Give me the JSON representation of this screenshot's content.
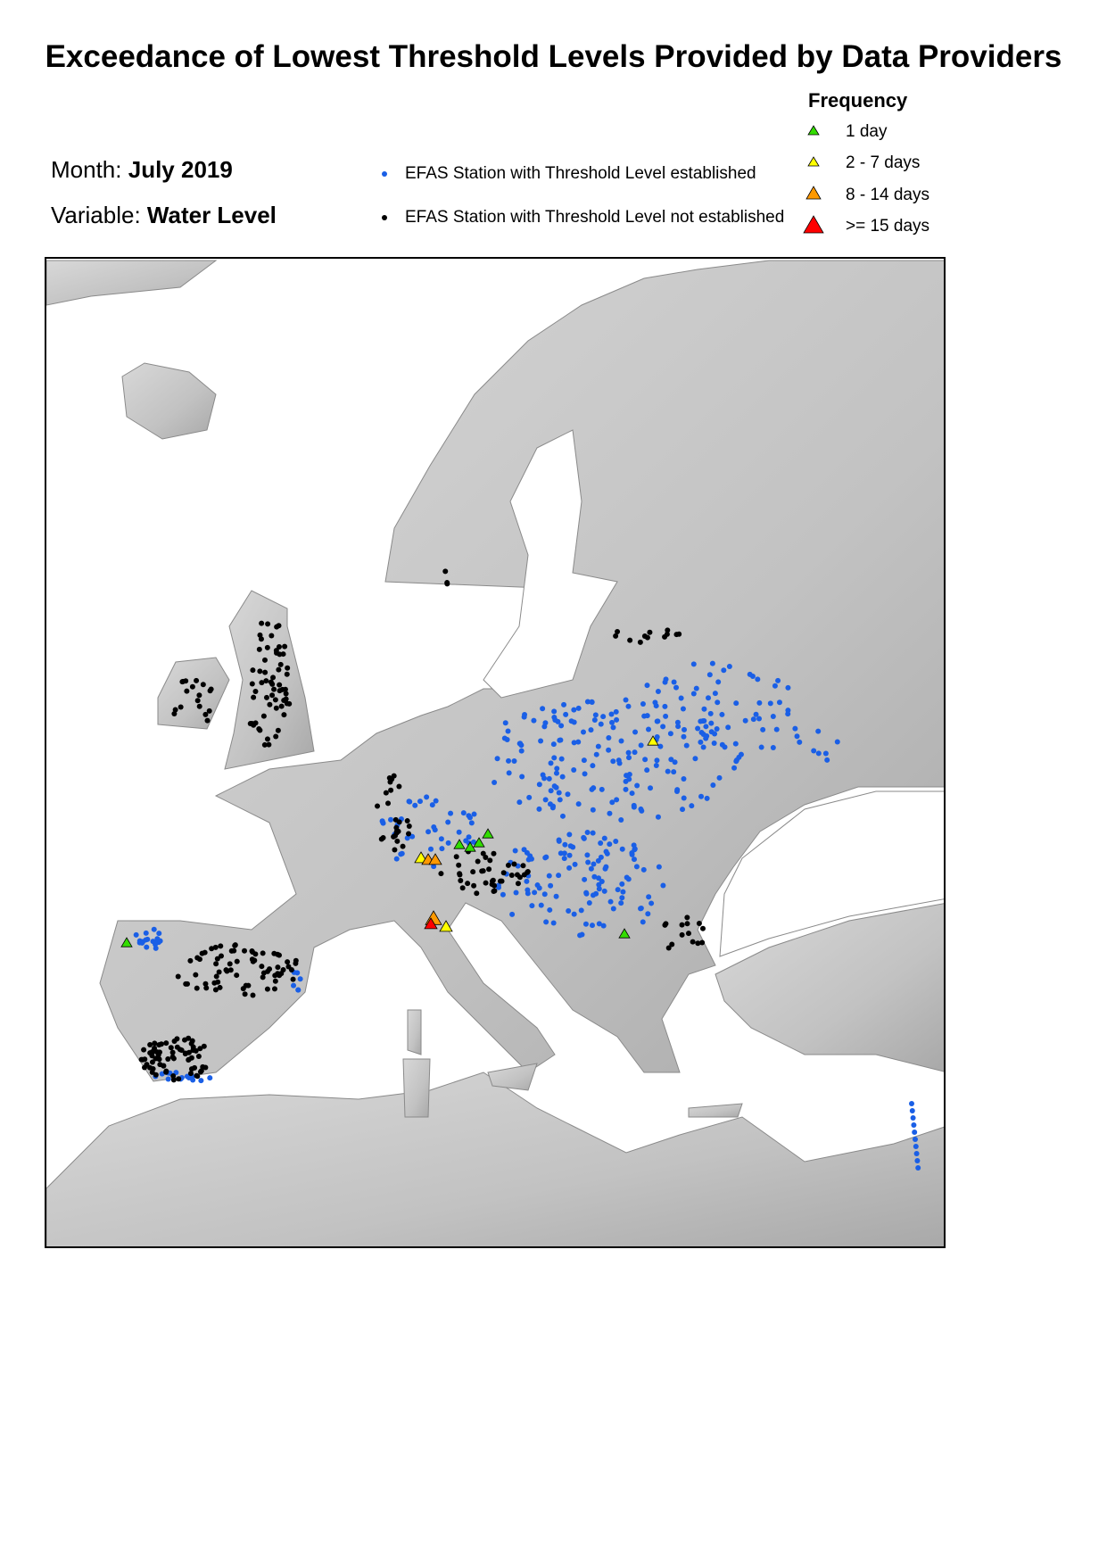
{
  "title": "Exceedance of Lowest Threshold Levels Provided by Data Providers",
  "month": {
    "label": "Month:",
    "value": "July 2019"
  },
  "variable": {
    "label": "Variable:",
    "value": "Water Level"
  },
  "station_legend": [
    {
      "label": "EFAS Station with Threshold Level established",
      "color": "#1a5fe6"
    },
    {
      "label": "EFAS Station with Threshold Level not established",
      "color": "#000000"
    }
  ],
  "frequency_legend": {
    "title": "Frequency",
    "items": [
      {
        "label": "1 day",
        "color": "#33dd00"
      },
      {
        "label": "2 - 7 days",
        "color": "#ffff00"
      },
      {
        "label": "8 - 14 days",
        "color": "#ff9900"
      },
      {
        "label": ">= 15 days",
        "color": "#ff0000"
      }
    ]
  },
  "map": {
    "land_color": "#c9c9c9",
    "sea_color": "#ffffff"
  }
}
